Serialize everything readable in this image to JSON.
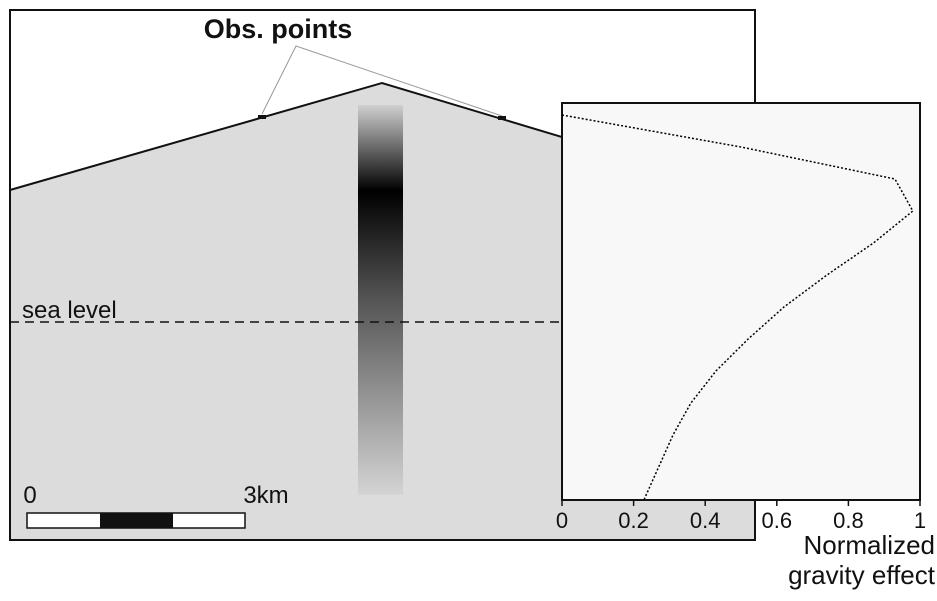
{
  "diagram": {
    "obs_label": "Obs. points",
    "sea_level": "sea level",
    "scale_start": "0",
    "scale_end": "3km"
  },
  "chart_data": {
    "type": "line",
    "xlabel": "Normalized gravity effect",
    "series": [
      {
        "color": "#000000",
        "values": [
          0.0,
          0.5,
          0.93,
          0.98,
          0.87,
          0.74,
          0.62,
          0.52,
          0.43,
          0.36,
          0.31,
          0.27,
          0.23
        ]
      }
    ],
    "xlim": [
      0,
      1
    ],
    "xticks": [
      0,
      0.2,
      0.4,
      0.6,
      0.8,
      1
    ]
  }
}
